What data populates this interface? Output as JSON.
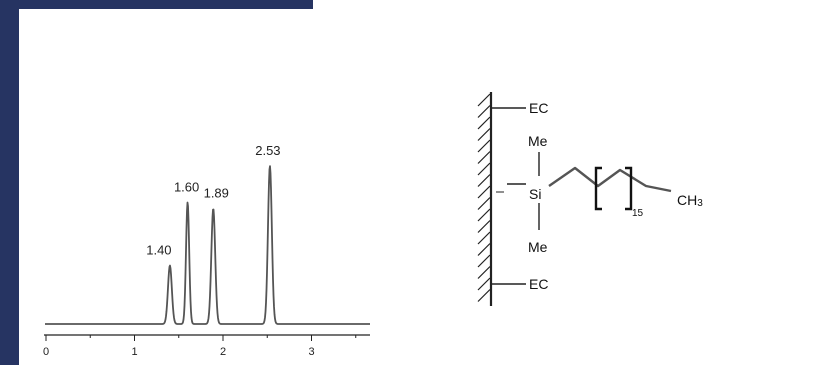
{
  "theme": {
    "band_color": "#263462",
    "trace_color": "#555555",
    "ink_color": "#222222"
  },
  "chart_data": {
    "type": "line",
    "title": "",
    "xlabel": "",
    "ylabel": "",
    "xlim": [
      0,
      3.7
    ],
    "ylim": [
      0,
      1
    ],
    "grid": false,
    "x_ticks": [
      "0",
      "1",
      "2",
      "3"
    ],
    "peaks": [
      {
        "label": "1.40",
        "x": 1.4,
        "height": 0.37,
        "width": 0.022
      },
      {
        "label": "1.60",
        "x": 1.6,
        "height": 0.77,
        "width": 0.018
      },
      {
        "label": "1.89",
        "x": 1.89,
        "height": 0.73,
        "width": 0.022
      },
      {
        "label": "2.53",
        "x": 2.53,
        "height": 1.0,
        "width": 0.022
      }
    ]
  },
  "structure": {
    "top_group": "EC",
    "bottom_group": "EC",
    "methyl_top": "Me",
    "methyl_bottom": "Me",
    "silicon": "Si",
    "repeat_count": "15",
    "end_group": "CH",
    "end_group_sub": "3"
  }
}
